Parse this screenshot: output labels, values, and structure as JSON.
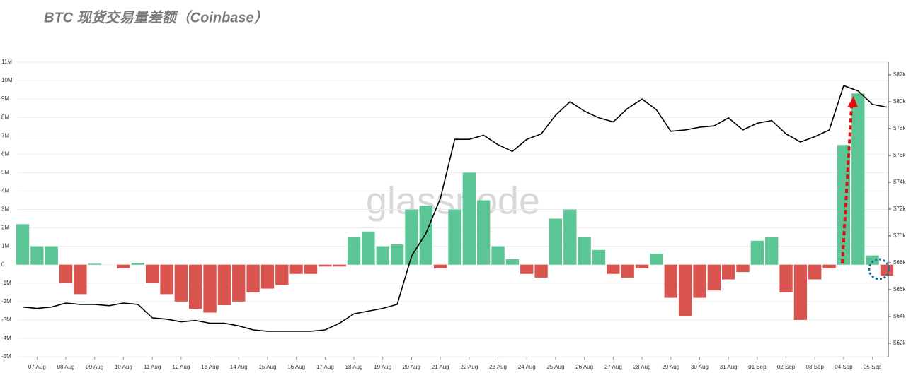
{
  "chart_data": {
    "type": "bar-line",
    "title": "BTC 现货交易量差额（Coinbase）",
    "watermark": "glassnode",
    "categories": [
      null,
      "07 Aug",
      null,
      "08 Aug",
      null,
      "09 Aug",
      null,
      "10 Aug",
      null,
      "11 Aug",
      null,
      "12 Aug",
      null,
      "13 Aug",
      null,
      "14 Aug",
      null,
      "15 Aug",
      null,
      "16 Aug",
      null,
      "17 Aug",
      null,
      "18 Aug",
      null,
      "19 Aug",
      null,
      "20 Aug",
      null,
      "21 Aug",
      null,
      "22 Aug",
      null,
      "23 Aug",
      null,
      "24 Aug",
      null,
      "25 Aug",
      null,
      "26 Aug",
      null,
      "27 Aug",
      null,
      "28 Aug",
      null,
      "29 Aug",
      null,
      "30 Aug",
      null,
      "31 Aug",
      null,
      "01 Sep",
      null,
      "02 Sep",
      null,
      "03 Sep",
      null,
      "04 Sep",
      null,
      "05 Sep",
      null
    ],
    "series": [
      {
        "values": [
          2200000,
          1000000,
          1000000,
          -1000000,
          -1600000,
          50000,
          0,
          -200000,
          100000,
          -1000000,
          -1600000,
          -2000000,
          -2400000,
          -2600000,
          -2200000,
          -2000000,
          -1500000,
          -1300000,
          -1100000,
          -500000,
          -500000,
          -100000,
          -100000,
          1500000,
          1800000,
          1000000,
          1100000,
          3000000,
          3200000,
          -200000,
          3000000,
          5000000,
          3500000,
          1000000,
          300000,
          -500000,
          -700000,
          2500000,
          3000000,
          1500000,
          800000,
          -500000,
          -700000,
          -200000,
          600000,
          -1800000,
          -2800000,
          -1800000,
          -1400000,
          -800000,
          -400000,
          1300000,
          1500000,
          -1500000,
          -3000000,
          -800000,
          -200000,
          6500000,
          9300000,
          500000,
          -600000
        ],
        "color": "#5cc596",
        "negative_color": "#d9534f"
      },
      {
        "values": [
          64700,
          64600,
          64700,
          65000,
          64900,
          64900,
          64800,
          65000,
          64900,
          63900,
          63800,
          63600,
          63700,
          63500,
          63500,
          63300,
          63000,
          62900,
          62900,
          62900,
          62900,
          63000,
          63500,
          64200,
          64400,
          64600,
          64900,
          68500,
          70200,
          72800,
          77200,
          77200,
          77500,
          76800,
          76300,
          77200,
          77600,
          79000,
          80000,
          79300,
          78800,
          78500,
          79500,
          80200,
          79400,
          77800,
          77900,
          78100,
          78200,
          78800,
          77900,
          78400,
          78600,
          77600,
          77000,
          77400,
          77900,
          81200,
          80800,
          79800,
          79600
        ],
        "color": "#000000",
        "axis": "y2"
      }
    ],
    "ylim": [
      -5000000,
      11000000
    ],
    "yticks": [
      {
        "value": -5000000,
        "label": "-5M"
      },
      {
        "value": -4000000,
        "label": "-4M"
      },
      {
        "value": -3000000,
        "label": "-3M"
      },
      {
        "value": -2000000,
        "label": "-2M"
      },
      {
        "value": -1000000,
        "label": "-1M"
      },
      0,
      {
        "value": 1000000,
        "label": "1M"
      },
      {
        "value": 2000000,
        "label": "2M"
      },
      {
        "value": 3000000,
        "label": "3M"
      },
      {
        "value": 4000000,
        "label": "4M"
      },
      {
        "value": 5000000,
        "label": "5M"
      },
      {
        "value": 6000000,
        "label": "6M"
      },
      {
        "value": 7000000,
        "label": "7M"
      },
      {
        "value": 8000000,
        "label": "8M"
      },
      {
        "value": 9000000,
        "label": "9M"
      },
      {
        "value": 10000000,
        "label": "10M"
      },
      {
        "value": 11000000,
        "label": "11M"
      }
    ],
    "y2lim": [
      61000,
      82950
    ],
    "y2ticks": [
      {
        "value": 62000,
        "label": "$62k"
      },
      {
        "value": 64000,
        "label": "$64k"
      },
      {
        "value": 66000,
        "label": "$66k"
      },
      {
        "value": 68000,
        "label": "$68k"
      },
      {
        "value": 70000,
        "label": "$70k"
      },
      {
        "value": 72000,
        "label": "$72k"
      },
      {
        "value": 74000,
        "label": "$74k"
      },
      {
        "value": 76000,
        "label": "$76k"
      },
      {
        "value": 78000,
        "label": "$78k"
      },
      {
        "value": 80000,
        "label": "$80k"
      },
      {
        "value": 82000,
        "label": "$82k"
      }
    ],
    "grid": true
  }
}
